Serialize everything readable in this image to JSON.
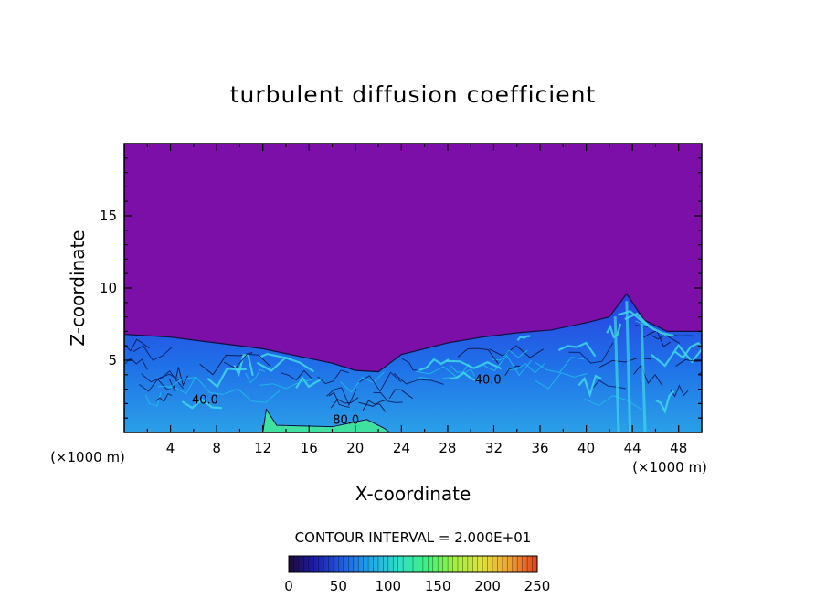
{
  "chart_data": {
    "type": "heatmap",
    "title": "turbulent diffusion coefficient",
    "xlabel": "X-coordinate",
    "ylabel": "Z-coordinate",
    "x_unit_label": "(×1000 m)",
    "y_unit_label": "(×1000 m)",
    "xlim": [
      0,
      50
    ],
    "ylim": [
      0,
      20
    ],
    "x_ticks": [
      4,
      8,
      12,
      16,
      20,
      24,
      28,
      32,
      36,
      40,
      44,
      48
    ],
    "y_ticks": [
      5,
      10,
      15
    ],
    "contour_interval_text": "CONTOUR INTERVAL = 2.000E+01",
    "contour_labels": [
      {
        "text": "40.0",
        "x": 7.0,
        "z": 2.0
      },
      {
        "text": "40.0",
        "x": 31.5,
        "z": 3.4
      },
      {
        "text": "80.0",
        "x": 19.2,
        "z": 0.6
      }
    ],
    "colorbar": {
      "min": 0,
      "max": 250,
      "ticks": [
        0,
        50,
        100,
        150,
        200,
        250
      ],
      "colors": [
        "#1b0a3a",
        "#1f1fb0",
        "#2060e0",
        "#20a8e8",
        "#30e0c8",
        "#40f080",
        "#a0f040",
        "#e0e040",
        "#f0a030",
        "#e04020"
      ]
    },
    "background_value_color": "#7b0fa8",
    "boundary_layer_profile": [
      {
        "x": 0,
        "z": 6.8
      },
      {
        "x": 4,
        "z": 6.6
      },
      {
        "x": 7,
        "z": 6.3
      },
      {
        "x": 9,
        "z": 6.1
      },
      {
        "x": 12,
        "z": 5.8
      },
      {
        "x": 15,
        "z": 5.3
      },
      {
        "x": 18,
        "z": 4.8
      },
      {
        "x": 20,
        "z": 4.3
      },
      {
        "x": 22,
        "z": 4.2
      },
      {
        "x": 24,
        "z": 5.4
      },
      {
        "x": 26,
        "z": 5.8
      },
      {
        "x": 28,
        "z": 6.2
      },
      {
        "x": 31,
        "z": 6.6
      },
      {
        "x": 34,
        "z": 6.9
      },
      {
        "x": 37,
        "z": 7.1
      },
      {
        "x": 40,
        "z": 7.6
      },
      {
        "x": 42,
        "z": 8.0
      },
      {
        "x": 43.5,
        "z": 9.6
      },
      {
        "x": 45,
        "z": 7.8
      },
      {
        "x": 47,
        "z": 7.0
      },
      {
        "x": 50,
        "z": 7.0
      }
    ]
  }
}
